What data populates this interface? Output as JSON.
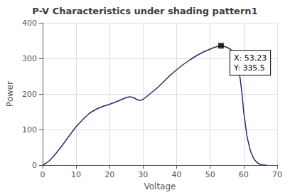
{
  "chart_data": {
    "type": "line",
    "title": "P-V Characteristics under shading pattern1",
    "xlabel": "Voltage",
    "ylabel": "Power",
    "xlim": [
      0,
      70
    ],
    "ylim": [
      0,
      400
    ],
    "xticks": [
      0,
      10,
      20,
      30,
      40,
      50,
      60,
      70
    ],
    "yticks": [
      0,
      100,
      200,
      300,
      400
    ],
    "grid": true,
    "series": [
      {
        "type": "line",
        "color": "#1f2f6e",
        "x": [
          0,
          1,
          2,
          3,
          4,
          5,
          6,
          7,
          8,
          10,
          12,
          14,
          16,
          18,
          20,
          22,
          23,
          24,
          25,
          26,
          27,
          27.5,
          28,
          28.5,
          29,
          29.5,
          30,
          31,
          32,
          34,
          36,
          38,
          40,
          42,
          44,
          46,
          48,
          50,
          51,
          52,
          53,
          53.23,
          54,
          55,
          56,
          57,
          57.5,
          58,
          58.5,
          59,
          59.5,
          60,
          61,
          62,
          63,
          64,
          65,
          66,
          67
        ],
        "values": [
          0,
          5,
          12,
          22,
          33,
          45,
          57,
          70,
          83,
          108,
          128,
          146,
          157,
          165,
          171,
          178,
          182,
          186,
          190,
          192,
          190,
          188,
          185,
          183,
          182,
          183,
          185,
          192,
          200,
          215,
          233,
          252,
          268,
          283,
          296,
          308,
          318,
          326,
          330,
          333,
          335,
          335.5,
          334,
          331,
          326,
          316,
          305,
          290,
          270,
          240,
          200,
          150,
          80,
          40,
          18,
          7,
          2,
          0,
          0
        ]
      },
      {
        "type": "scatter",
        "marker": "square",
        "color": "#000000",
        "x": [
          53.23
        ],
        "values": [
          335.5
        ]
      }
    ],
    "annotations": [
      {
        "text": "X: 53.23\nY: 335.5",
        "x": 53.23,
        "y": 335.5
      }
    ]
  }
}
